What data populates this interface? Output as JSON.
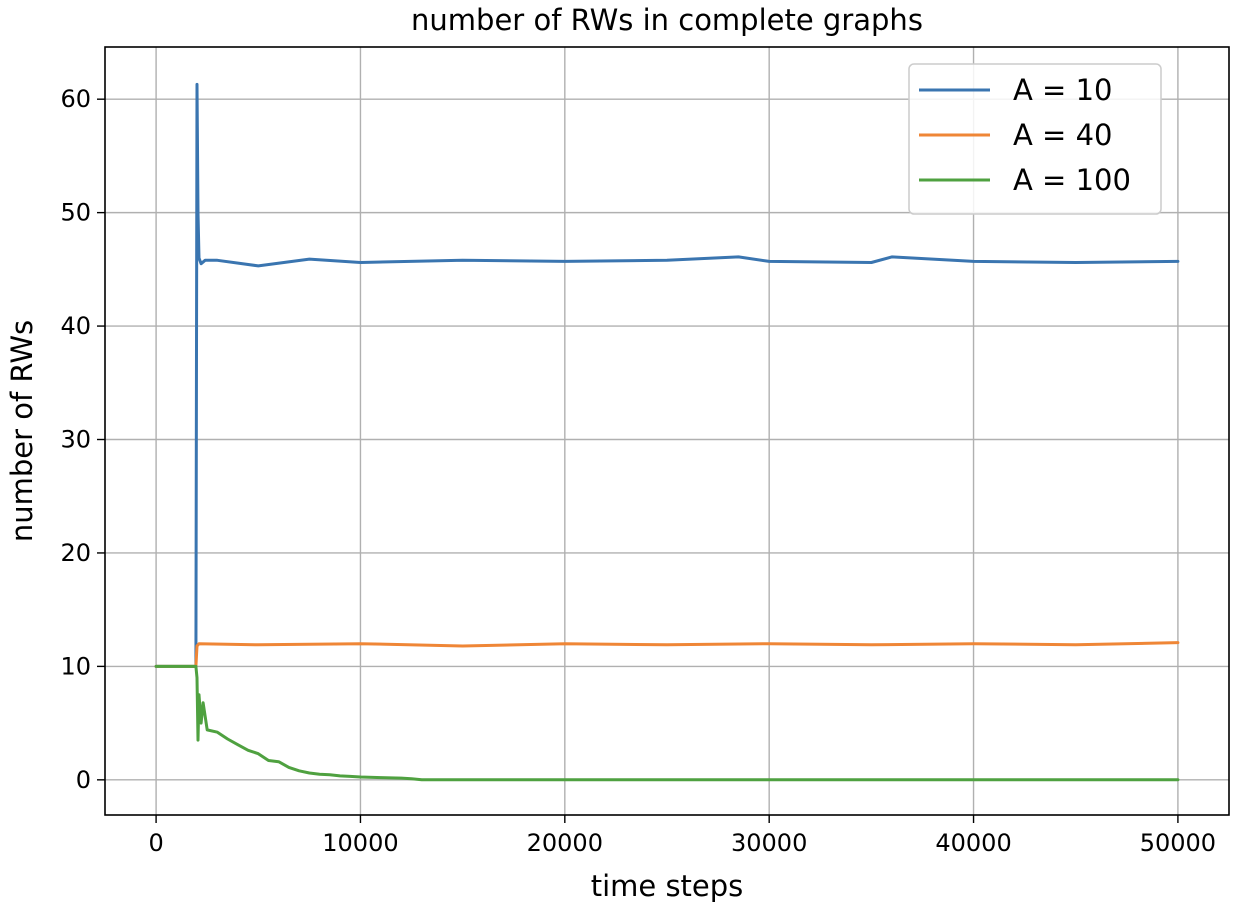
{
  "chart_data": {
    "type": "line",
    "title": "number of RWs in complete graphs",
    "xlabel": "time steps",
    "ylabel": "number of RWs",
    "xlim": [
      -2500,
      52500
    ],
    "ylim": [
      -3.1,
      64.6
    ],
    "x_ticks": [
      0,
      10000,
      20000,
      30000,
      40000,
      50000
    ],
    "x_tick_labels": [
      "0",
      "10000",
      "20000",
      "30000",
      "40000",
      "50000"
    ],
    "y_ticks": [
      0,
      10,
      20,
      30,
      40,
      50,
      60
    ],
    "y_tick_labels": [
      "0",
      "10",
      "20",
      "30",
      "40",
      "50",
      "60"
    ],
    "grid": true,
    "legend_position": "top-right",
    "series": [
      {
        "name": "A = 10",
        "color": "#3a75b0",
        "x": [
          0,
          1950,
          2000,
          2050,
          2100,
          2200,
          2400,
          3000,
          5000,
          7500,
          10000,
          15000,
          20000,
          25000,
          28500,
          30000,
          35000,
          36000,
          40000,
          45000,
          50000
        ],
        "y": [
          10,
          10,
          61.3,
          50,
          46,
          45.5,
          45.8,
          45.8,
          45.3,
          45.9,
          45.6,
          45.8,
          45.7,
          45.8,
          46.1,
          45.7,
          45.6,
          46.1,
          45.7,
          45.6,
          45.7
        ]
      },
      {
        "name": "A = 40",
        "color": "#ef8636",
        "x": [
          0,
          1950,
          2000,
          2100,
          5000,
          10000,
          15000,
          20000,
          25000,
          30000,
          35000,
          40000,
          45000,
          50000
        ],
        "y": [
          10,
          10,
          11.8,
          12,
          11.9,
          12,
          11.8,
          12,
          11.9,
          12,
          11.9,
          12,
          11.9,
          12.1
        ]
      },
      {
        "name": "A = 100",
        "color": "#4fa140",
        "x": [
          0,
          1950,
          2000,
          2050,
          2100,
          2200,
          2300,
          2500,
          3000,
          3500,
          4000,
          4500,
          5000,
          5500,
          6000,
          6500,
          7000,
          7500,
          8000,
          8500,
          9000,
          9500,
          10000,
          11000,
          12000,
          12500,
          13000,
          20000,
          30000,
          40000,
          50000
        ],
        "y": [
          10,
          10,
          9,
          3.5,
          7.5,
          5,
          6.8,
          4.4,
          4.2,
          3.6,
          3.1,
          2.6,
          2.3,
          1.7,
          1.6,
          1.1,
          0.8,
          0.6,
          0.5,
          0.45,
          0.35,
          0.3,
          0.25,
          0.2,
          0.15,
          0.1,
          0.0,
          0.0,
          0.0,
          0.0,
          0.0
        ]
      }
    ]
  }
}
